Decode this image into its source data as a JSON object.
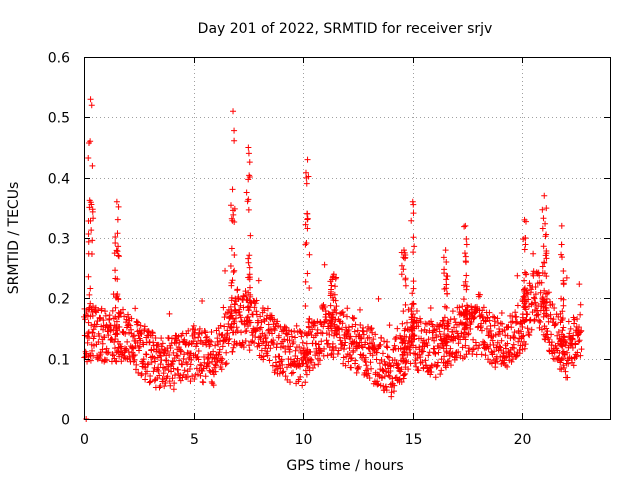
{
  "chart_data": {
    "type": "scatter",
    "title": "Day 201 of 2022, SRMTID for receiver srjv",
    "xlabel": "GPS time / hours",
    "ylabel": "SRMTID / TECUs",
    "xlim": [
      0,
      24
    ],
    "ylim": [
      0,
      0.6
    ],
    "x_ticks": [
      0,
      5,
      10,
      15,
      20
    ],
    "x_tick_labels": [
      "0",
      "5",
      "10",
      "15",
      "20"
    ],
    "y_ticks": [
      0,
      0.1,
      0.2,
      0.3,
      0.4,
      0.5,
      0.6
    ],
    "y_tick_labels": [
      "0",
      "0.1",
      "0.2",
      "0.3",
      "0.4",
      "0.5",
      "0.6"
    ],
    "grid": true,
    "marker": "plus",
    "series": [
      {
        "name": "SRMTID",
        "color": "#ff0000",
        "bursts": [
          {
            "x": 0.3,
            "peak": 0.53,
            "width": 0.25
          },
          {
            "x": 1.5,
            "peak": 0.36,
            "width": 0.2
          },
          {
            "x": 6.8,
            "peak": 0.51,
            "width": 0.3
          },
          {
            "x": 7.5,
            "peak": 0.45,
            "width": 0.2
          },
          {
            "x": 10.2,
            "peak": 0.43,
            "width": 0.2
          },
          {
            "x": 11.4,
            "peak": 0.24,
            "width": 0.3
          },
          {
            "x": 14.6,
            "peak": 0.28,
            "width": 0.2
          },
          {
            "x": 15.0,
            "peak": 0.36,
            "width": 0.15
          },
          {
            "x": 16.5,
            "peak": 0.28,
            "width": 0.2
          },
          {
            "x": 17.4,
            "peak": 0.32,
            "width": 0.15
          },
          {
            "x": 20.1,
            "peak": 0.33,
            "width": 0.2
          },
          {
            "x": 21.0,
            "peak": 0.37,
            "width": 0.2
          },
          {
            "x": 21.8,
            "peak": 0.32,
            "width": 0.2
          }
        ],
        "baseline": [
          {
            "x": 0.0,
            "y": 0.14
          },
          {
            "x": 2.0,
            "y": 0.14
          },
          {
            "x": 3.0,
            "y": 0.1
          },
          {
            "x": 4.0,
            "y": 0.09
          },
          {
            "x": 5.0,
            "y": 0.11
          },
          {
            "x": 6.0,
            "y": 0.1
          },
          {
            "x": 7.0,
            "y": 0.17
          },
          {
            "x": 8.0,
            "y": 0.15
          },
          {
            "x": 9.0,
            "y": 0.11
          },
          {
            "x": 10.0,
            "y": 0.1
          },
          {
            "x": 11.0,
            "y": 0.15
          },
          {
            "x": 12.0,
            "y": 0.13
          },
          {
            "x": 13.0,
            "y": 0.11
          },
          {
            "x": 14.0,
            "y": 0.08
          },
          {
            "x": 15.0,
            "y": 0.13
          },
          {
            "x": 16.0,
            "y": 0.11
          },
          {
            "x": 17.0,
            "y": 0.14
          },
          {
            "x": 18.0,
            "y": 0.15
          },
          {
            "x": 19.0,
            "y": 0.12
          },
          {
            "x": 20.0,
            "y": 0.15
          },
          {
            "x": 20.6,
            "y": 0.21
          },
          {
            "x": 21.3,
            "y": 0.15
          },
          {
            "x": 22.0,
            "y": 0.11
          },
          {
            "x": 22.7,
            "y": 0.15
          }
        ],
        "range": [
          0.0,
          22.7
        ],
        "approx_count": 1800
      }
    ]
  }
}
